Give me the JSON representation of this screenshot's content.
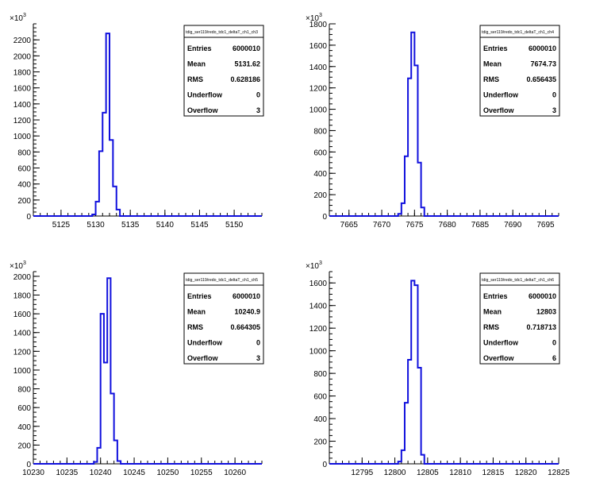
{
  "chart_data": [
    {
      "type": "histogram",
      "xlim": [
        5121,
        5154
      ],
      "ylim": [
        0,
        2400
      ],
      "y_exponent_label": "×10",
      "y_exponent_power": "3",
      "x_ticks": [
        5125,
        5130,
        5135,
        5140,
        5145,
        5150
      ],
      "y_ticks": [
        0,
        200,
        400,
        600,
        800,
        1000,
        1200,
        1400,
        1600,
        1800,
        2000,
        2200
      ],
      "y_tick_labels": [
        "0",
        "200",
        "400",
        "600",
        "800",
        "1000",
        "1200",
        "1400",
        "1600",
        "1800",
        "2000",
        "2200"
      ],
      "x_tick_labels": [
        "5125",
        "5130",
        "5135",
        "5140",
        "5145",
        "5150"
      ],
      "bin_width": 0.5,
      "bins_x": [
        5129.5,
        5130,
        5130.5,
        5131,
        5131.5,
        5132,
        5132.5,
        5133
      ],
      "bins_y": [
        20,
        180,
        810,
        1290,
        2280,
        950,
        370,
        80
      ],
      "stats": {
        "title": "tdig_ser119/redo_tdc1_deltaT_ch1_ch3",
        "rows": [
          {
            "label": "Entries",
            "value": "6000010"
          },
          {
            "label": "Mean",
            "value": "5131.62"
          },
          {
            "label": "RMS",
            "value": "0.628186"
          },
          {
            "label": "Underflow",
            "value": "0"
          },
          {
            "label": "Overflow",
            "value": "3"
          }
        ]
      }
    },
    {
      "type": "histogram",
      "xlim": [
        7662,
        7697
      ],
      "ylim": [
        0,
        1800
      ],
      "y_exponent_label": "×10",
      "y_exponent_power": "3",
      "x_ticks": [
        7665,
        7670,
        7675,
        7680,
        7685,
        7690,
        7695
      ],
      "y_ticks": [
        0,
        200,
        400,
        600,
        800,
        1000,
        1200,
        1400,
        1600,
        1800
      ],
      "y_tick_labels": [
        "0",
        "200",
        "400",
        "600",
        "800",
        "1000",
        "1200",
        "1400",
        "1600",
        "1800"
      ],
      "x_tick_labels": [
        "7665",
        "7670",
        "7675",
        "7680",
        "7685",
        "7690",
        "7695"
      ],
      "bin_width": 0.5,
      "bins_x": [
        7672.5,
        7673,
        7673.5,
        7674,
        7674.5,
        7675,
        7675.5,
        7676
      ],
      "bins_y": [
        20,
        120,
        560,
        1290,
        1720,
        1410,
        500,
        80
      ],
      "stats": {
        "title": "tdig_ser119/redo_tdc1_deltaT_ch1_ch4",
        "rows": [
          {
            "label": "Entries",
            "value": "6000010"
          },
          {
            "label": "Mean",
            "value": "7674.73"
          },
          {
            "label": "RMS",
            "value": "0.656435"
          },
          {
            "label": "Underflow",
            "value": "0"
          },
          {
            "label": "Overflow",
            "value": "3"
          }
        ]
      }
    },
    {
      "type": "histogram",
      "xlim": [
        10230,
        10264
      ],
      "ylim": [
        0,
        2050
      ],
      "y_exponent_label": "×10",
      "y_exponent_power": "3",
      "x_ticks": [
        10230,
        10235,
        10240,
        10245,
        10250,
        10255,
        10260
      ],
      "y_ticks": [
        0,
        200,
        400,
        600,
        800,
        1000,
        1200,
        1400,
        1600,
        1800,
        2000
      ],
      "y_tick_labels": [
        "0",
        "200",
        "400",
        "600",
        "800",
        "1000",
        "1200",
        "1400",
        "1600",
        "1800",
        "2000"
      ],
      "x_tick_labels": [
        "10230",
        "10235",
        "10240",
        "10245",
        "10250",
        "10255",
        "10260"
      ],
      "bin_width": 0.5,
      "bins_x": [
        10239,
        10239.5,
        10240,
        10240.5,
        10241,
        10241.5,
        10242,
        10242.5
      ],
      "bins_y": [
        20,
        170,
        1600,
        1080,
        1980,
        750,
        250,
        30
      ],
      "stats": {
        "title": "tdig_ser119/redo_tdc1_deltaT_ch1_ch5",
        "rows": [
          {
            "label": "Entries",
            "value": "6000010"
          },
          {
            "label": "Mean",
            "value": "10240.9"
          },
          {
            "label": "RMS",
            "value": "0.664305"
          },
          {
            "label": "Underflow",
            "value": "0"
          },
          {
            "label": "Overflow",
            "value": "3"
          }
        ]
      }
    },
    {
      "type": "histogram",
      "xlim": [
        12790,
        12825
      ],
      "ylim": [
        0,
        1700
      ],
      "y_exponent_label": "×10",
      "y_exponent_power": "3",
      "x_ticks": [
        12795,
        12800,
        12805,
        12810,
        12815,
        12820,
        12825
      ],
      "y_ticks": [
        0,
        200,
        400,
        600,
        800,
        1000,
        1200,
        1400,
        1600
      ],
      "y_tick_labels": [
        "0",
        "200",
        "400",
        "600",
        "800",
        "1000",
        "1200",
        "1400",
        "1600"
      ],
      "x_tick_labels": [
        "12795",
        "12800",
        "12805",
        "12810",
        "12815",
        "12820",
        "12825"
      ],
      "bin_width": 0.5,
      "bins_x": [
        12800.5,
        12801,
        12801.5,
        12802,
        12802.5,
        12803,
        12803.5,
        12804
      ],
      "bins_y": [
        20,
        120,
        540,
        920,
        1620,
        1580,
        850,
        80
      ],
      "stats": {
        "title": "tdig_ser119/redo_tdc1_deltaT_ch1_ch6",
        "rows": [
          {
            "label": "Entries",
            "value": "6000010"
          },
          {
            "label": "Mean",
            "value": "12803"
          },
          {
            "label": "RMS",
            "value": "0.718713"
          },
          {
            "label": "Underflow",
            "value": "0"
          },
          {
            "label": "Overflow",
            "value": "6"
          }
        ]
      }
    }
  ],
  "colors": {
    "line": "#1010dd",
    "axis": "#000000",
    "background": "#ffffff"
  }
}
